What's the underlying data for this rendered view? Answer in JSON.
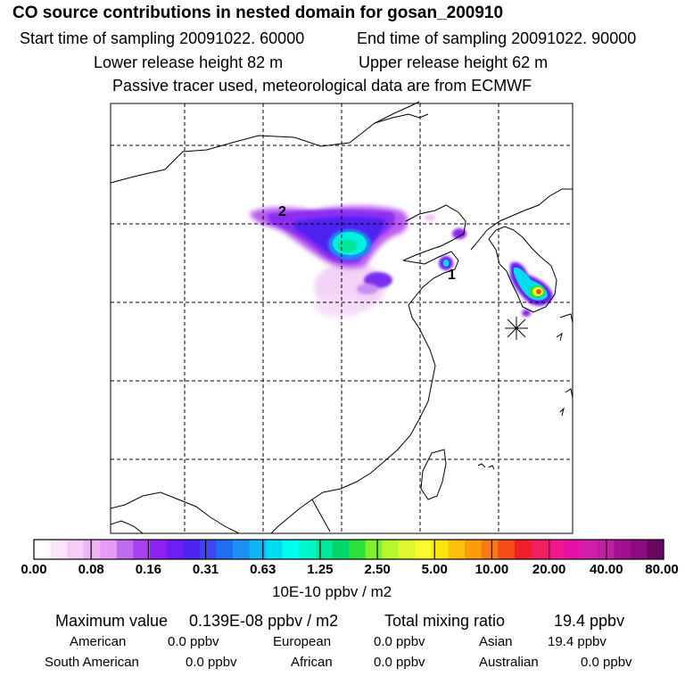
{
  "header": {
    "title": "CO  source contributions in nested domain for gosan_200910",
    "start_label": "Start time of sampling 20091022. 60000",
    "end_label": "End time of sampling 20091022. 90000",
    "lower_label": "Lower release height   82 m",
    "upper_label": "Upper release height   62 m",
    "note": "Passive tracer used, meteorological data are from ECMWF"
  },
  "map": {
    "markers": [
      {
        "id": "2",
        "label": "2"
      },
      {
        "id": "1",
        "label": "1"
      }
    ],
    "receptor": "gosan-receptor-star"
  },
  "legend": {
    "ticks": [
      "0.00",
      "0.08",
      "0.16",
      "0.31",
      "0.63",
      "1.25",
      "2.50",
      "5.00",
      "10.00",
      "20.00",
      "40.00",
      "80.00"
    ],
    "unit": "10E-10 ppbv / m2",
    "colors": [
      "#ffffff",
      "#fbe6fb",
      "#f6cdf6",
      "#eeb4f6",
      "#e79bf5",
      "#c06cf0",
      "#a83ff0",
      "#8d20f2",
      "#6c1ff2",
      "#4f23f2",
      "#3f45f2",
      "#1f6ef2",
      "#1e8ff3",
      "#10b4f4",
      "#00dcef",
      "#00fdec",
      "#00f5c8",
      "#00e89a",
      "#00d56a",
      "#2ce23a",
      "#7bf02b",
      "#b7f52f",
      "#def72f",
      "#fbfb2d",
      "#fbe50e",
      "#fbc00b",
      "#fb9c0c",
      "#f77915",
      "#f44d1a",
      "#f01f2a",
      "#f01f5f",
      "#f2158c",
      "#e810a8",
      "#d01fa9",
      "#c01fa0",
      "#a01090",
      "#8a0c80",
      "#6a0860"
    ]
  },
  "footer": {
    "max_label": "Maximum value",
    "max_value": "0.139E-08 ppbv / m2",
    "total_label": "Total mixing ratio",
    "total_value": "19.4 ppbv",
    "regions": [
      {
        "name": "American",
        "value": "0.0 ppbv"
      },
      {
        "name": "European",
        "value": "0.0 ppbv"
      },
      {
        "name": "Asian",
        "value": "19.4 ppbv"
      },
      {
        "name": "South American",
        "value": "0.0 ppbv"
      },
      {
        "name": "African",
        "value": "0.0 ppbv"
      },
      {
        "name": "Australian",
        "value": "0.0 ppbv"
      }
    ]
  }
}
